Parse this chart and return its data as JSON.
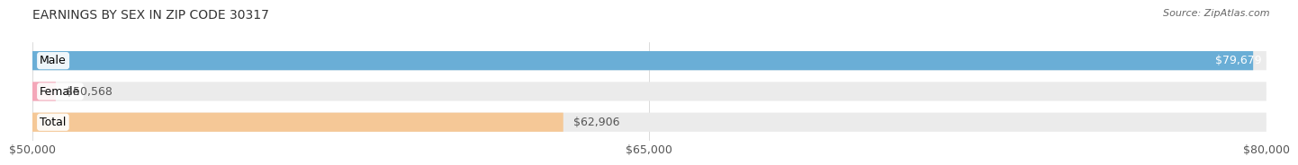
{
  "title": "EARNINGS BY SEX IN ZIP CODE 30317",
  "source": "Source: ZipAtlas.com",
  "categories": [
    "Male",
    "Female",
    "Total"
  ],
  "values": [
    79679,
    50568,
    62906
  ],
  "bar_colors": [
    "#6aaed6",
    "#f4a7b9",
    "#f5c897"
  ],
  "bar_bg_color": "#ebebeb",
  "x_min": 50000,
  "x_max": 80000,
  "x_ticks": [
    50000,
    65000,
    80000
  ],
  "x_tick_labels": [
    "$50,000",
    "$65,000",
    "$80,000"
  ],
  "value_labels": [
    "$79,679",
    "$50,568",
    "$62,906"
  ],
  "label_inside": [
    true,
    false,
    false
  ],
  "title_fontsize": 10,
  "source_fontsize": 8,
  "tick_fontsize": 9,
  "bar_label_fontsize": 9,
  "category_fontsize": 9,
  "background_color": "#ffffff"
}
